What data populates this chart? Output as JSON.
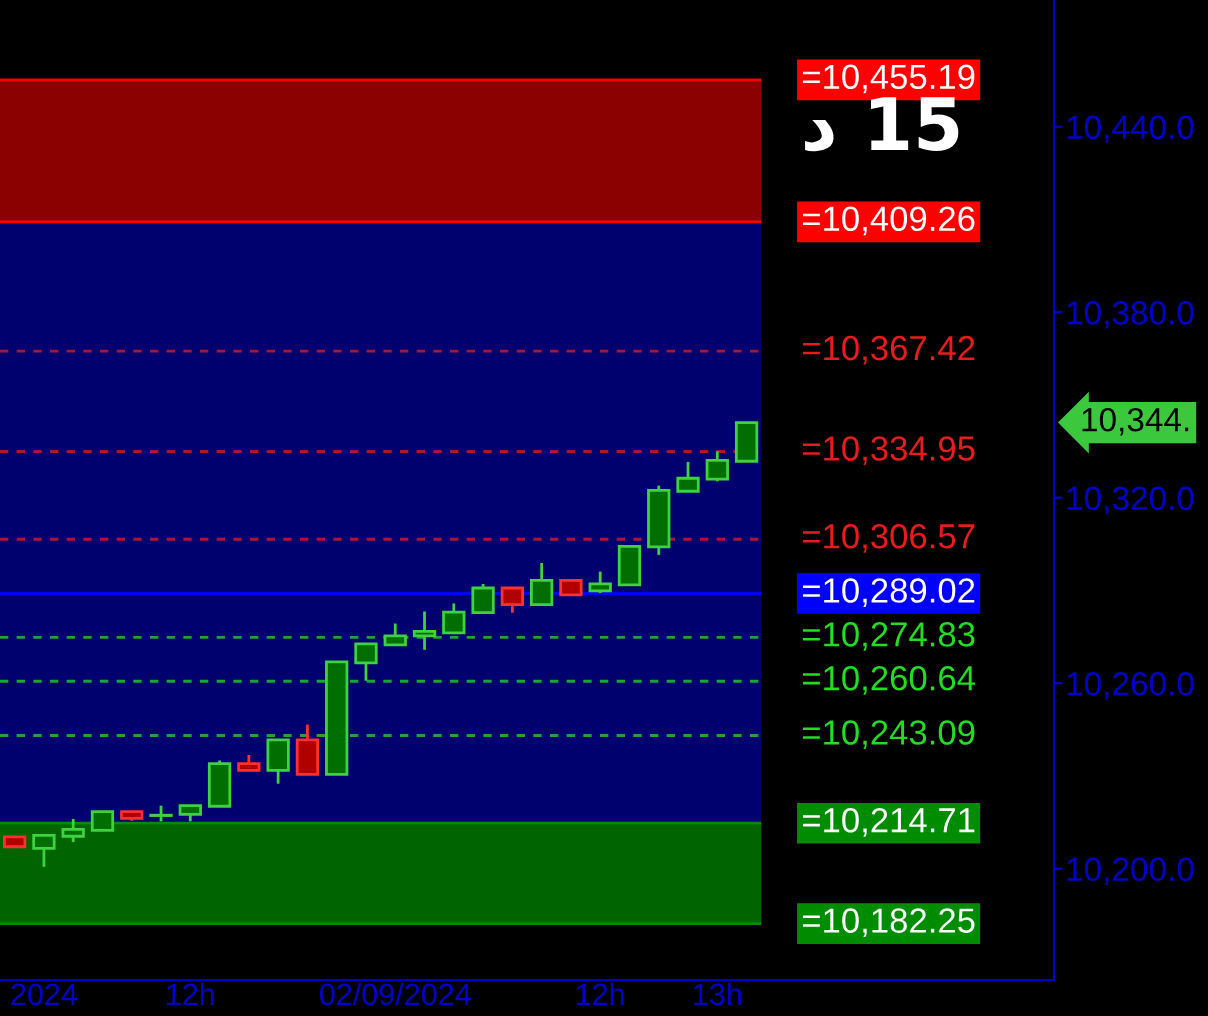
{
  "chart_data": {
    "type": "candlestick",
    "categories": [
      null,
      "2024",
      null,
      null,
      null,
      null,
      "12h",
      null,
      null,
      null,
      null,
      null,
      null,
      "02/09/2024",
      null,
      null,
      null,
      null,
      null,
      null,
      "12h",
      null,
      null,
      null,
      "13h",
      null,
      null,
      null,
      null,
      null,
      null,
      null,
      null,
      null,
      null,
      null
    ],
    "ohlc": [
      [
        10210.3,
        10210.3,
        10207.1,
        10207.1
      ],
      [
        10206.6,
        10210.8,
        10200.6,
        10210.8
      ],
      [
        10210.5,
        10216.1,
        10208.6,
        10212.7
      ],
      [
        10212.4,
        10218.5,
        10212.4,
        10218.5
      ],
      [
        10218.5,
        10218.5,
        10215.5,
        10216.3
      ],
      [
        10217.2,
        10220.4,
        10215.3,
        10217.3
      ],
      [
        10217.6,
        10220.4,
        10215.3,
        10220.4
      ],
      [
        10220.2,
        10235.0,
        10220.2,
        10234.0
      ],
      [
        10234.0,
        10236.8,
        10231.8,
        10231.8
      ],
      [
        10231.8,
        10241.7,
        10227.5,
        10241.7
      ],
      [
        10241.7,
        10246.6,
        10230.5,
        10230.5
      ],
      [
        10230.5,
        10266.9,
        10230.5,
        10266.9
      ],
      [
        10266.6,
        10272.7,
        10260.8,
        10272.7
      ],
      [
        10272.4,
        10279.3,
        10272.4,
        10275.3
      ],
      [
        10275.3,
        10283.2,
        10270.8,
        10276.8
      ],
      [
        10276.3,
        10285.8,
        10276.3,
        10283.0
      ],
      [
        10282.8,
        10292.1,
        10282.4,
        10290.8
      ],
      [
        10290.8,
        10290.8,
        10282.8,
        10285.4
      ],
      [
        10285.4,
        10298.9,
        10285.4,
        10293.3
      ],
      [
        10293.3,
        10293.3,
        10288.6,
        10288.6
      ],
      [
        10289.9,
        10296.1,
        10289.2,
        10292.1
      ],
      [
        10291.8,
        10304.3,
        10291.8,
        10304.3
      ],
      [
        10304.1,
        10323.9,
        10301.5,
        10322.4
      ],
      [
        10322.1,
        10331.6,
        10322.1,
        10326.3
      ],
      [
        10326.0,
        10335.0,
        10325.3,
        10332.1
      ],
      [
        10331.8,
        10344.3,
        10331.8,
        10344.3
      ],
      null,
      null,
      null,
      null,
      null,
      null,
      null,
      null,
      null,
      null
    ],
    "colors": [
      "#b00000",
      "#006e00",
      "#006e00",
      "#006e00",
      "#b00000",
      "#006e00",
      "#006e00",
      "#006e00",
      "#b00000",
      "#006e00",
      "#b00000",
      "#006e00",
      "#006e00",
      "#006e00",
      "#006e00",
      "#006e00",
      "#006e00",
      "#b00000",
      "#006e00",
      "#b00000",
      "#006e00",
      "#006e00",
      "#006e00",
      "#006e00",
      "#006e00",
      "#006e00",
      null,
      null,
      null,
      null,
      null,
      null,
      null,
      null,
      null,
      null
    ],
    "ylim": [
      10164,
      10481
    ],
    "yticks": [
      {
        "value": 10200,
        "label": "10,200.0"
      },
      {
        "value": 10260,
        "label": "10,260.0"
      },
      {
        "value": 10320,
        "label": "10,320.0"
      },
      {
        "value": 10380,
        "label": "10,380.0"
      },
      {
        "value": 10440,
        "label": "10,440.0"
      }
    ],
    "bands": [
      {
        "axis": "y",
        "from": 10409.26,
        "to": 10455.19,
        "color": "#8b0000"
      },
      {
        "axis": "y",
        "from": 10214.71,
        "to": 10409.26,
        "color": "#00006e"
      },
      {
        "axis": "y",
        "from": 10182.25,
        "to": 10214.71,
        "color": "#006400"
      }
    ],
    "ref_lines": [
      {
        "axis": "y",
        "value": 10455.19,
        "label": "=10,455.19",
        "color": "#ff0000",
        "line_style": "solid"
      },
      {
        "axis": "y",
        "value": 10409.26,
        "label": "=10,409.26",
        "color": "#ff0000",
        "line_style": "solid"
      },
      {
        "axis": "y",
        "value": 10367.42,
        "label": "=10,367.42",
        "color": "#e81c1c",
        "line_style": "dashed"
      },
      {
        "axis": "y",
        "value": 10334.95,
        "label": "=10,334.95",
        "color": "#e81c1c",
        "line_style": "dashed"
      },
      {
        "axis": "y",
        "value": 10306.57,
        "label": "=10,306.57",
        "color": "#e81c1c",
        "line_style": "dashed"
      },
      {
        "axis": "y",
        "value": 10289.02,
        "label": "=10,289.02",
        "color": "#0000ff",
        "line_style": "solid"
      },
      {
        "axis": "y",
        "value": 10274.83,
        "label": "=10,274.83",
        "color": "#22dd22",
        "line_style": "dashed"
      },
      {
        "axis": "y",
        "value": 10260.64,
        "label": "=10,260.64",
        "color": "#22dd22",
        "line_style": "dashed"
      },
      {
        "axis": "y",
        "value": 10243.09,
        "label": "=10,243.09",
        "color": "#22dd22",
        "line_style": "dashed"
      },
      {
        "axis": "y",
        "value": 10214.71,
        "label": "=10,214.71",
        "color": "#008c00",
        "line_style": "solid"
      },
      {
        "axis": "y",
        "value": 10182.25,
        "label": "=10,182.25",
        "color": "#008c00",
        "line_style": "solid"
      }
    ],
    "annotations": [
      "د 15",
      "10,344."
    ]
  }
}
